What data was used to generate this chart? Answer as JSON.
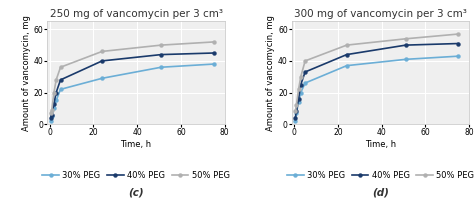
{
  "left_title": "250 mg of vancomycin per 3 cm³",
  "right_title": "300 mg of vancomycin per 3 cm³",
  "xlabel": "Time, h",
  "ylabel": "Amount of vancomycin, mg",
  "left_label": "(c)",
  "right_label": "(d)",
  "time_points": [
    0.5,
    1,
    2,
    3,
    5,
    24,
    51,
    75
  ],
  "left_30peg": [
    2,
    5,
    10,
    15,
    22,
    29,
    36,
    38
  ],
  "left_40peg": [
    4,
    6,
    13,
    20,
    28,
    40,
    44,
    45
  ],
  "left_50peg": [
    7,
    9,
    20,
    28,
    36,
    46,
    50,
    52
  ],
  "right_30peg": [
    2,
    7,
    14,
    20,
    26,
    37,
    41,
    43
  ],
  "right_40peg": [
    4,
    8,
    16,
    25,
    33,
    44,
    50,
    51
  ],
  "right_50peg": [
    8,
    12,
    22,
    30,
    40,
    50,
    54,
    57
  ],
  "color_30peg": "#6baed6",
  "color_40peg": "#1a3a6b",
  "color_50peg": "#b0b0b0",
  "ylim": [
    0,
    65
  ],
  "xlim": [
    -1,
    80
  ],
  "xticks": [
    0,
    20,
    40,
    60,
    80
  ],
  "yticks": [
    0,
    20,
    40,
    60
  ],
  "legend_labels": [
    "30% PEG",
    "40% PEG",
    "50% PEG"
  ],
  "bg_color": "#efefef",
  "title_fontsize": 7.5,
  "label_fontsize": 6.0,
  "tick_fontsize": 5.5,
  "legend_fontsize": 6.0
}
